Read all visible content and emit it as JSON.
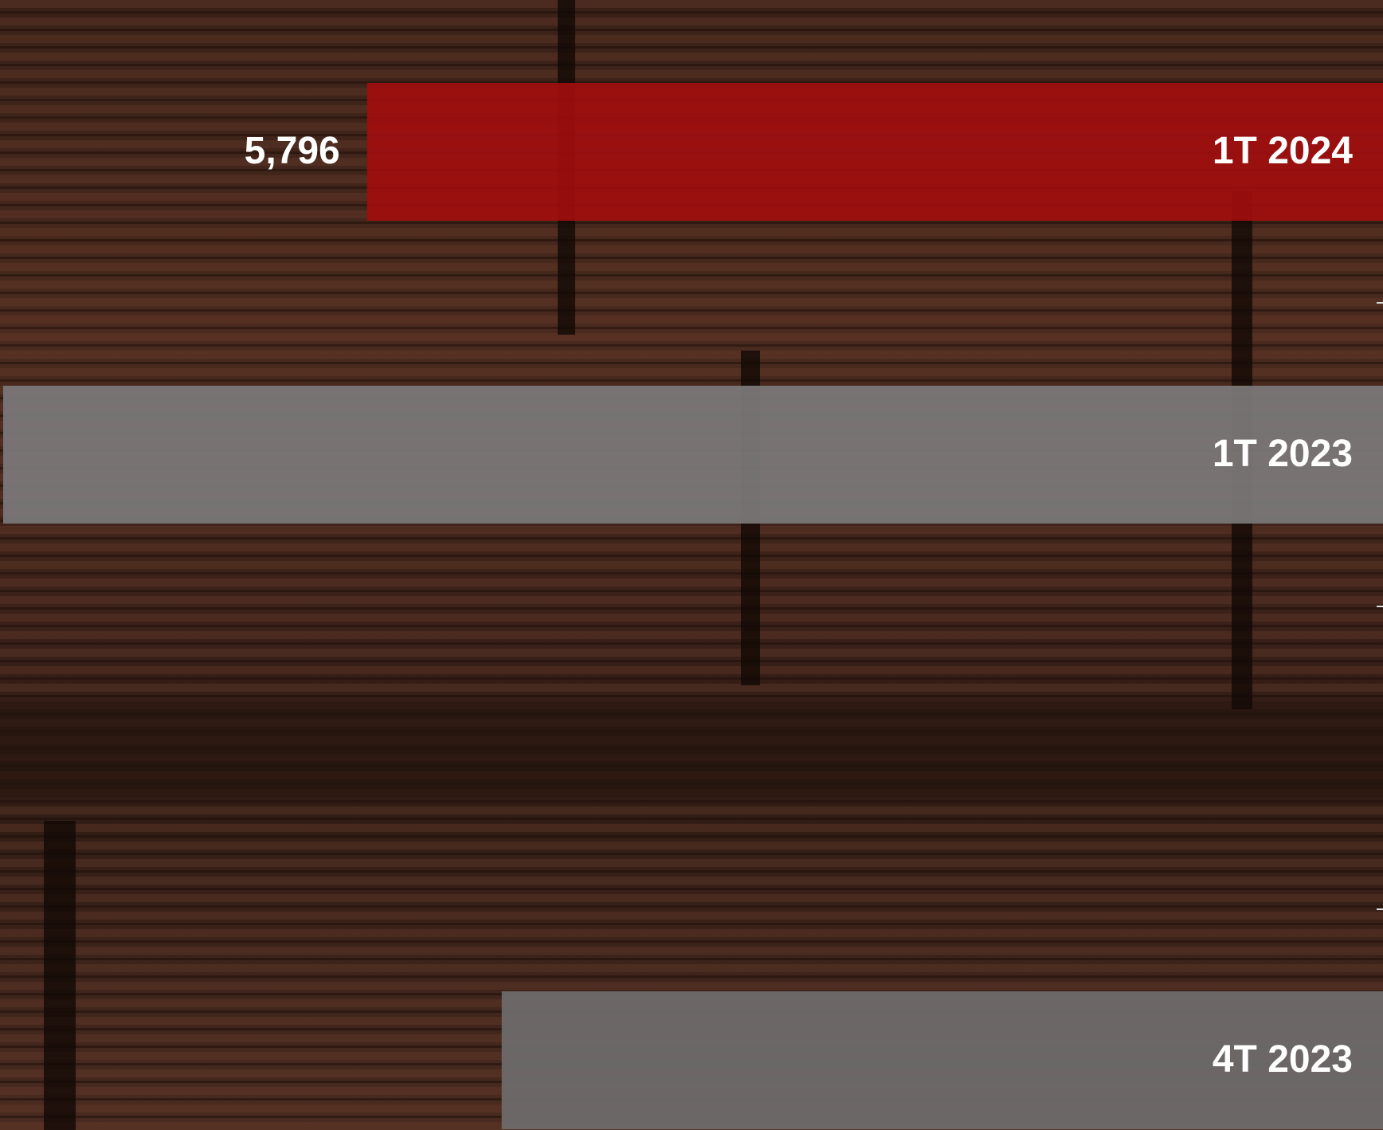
{
  "chart_data": {
    "type": "bar",
    "orientation": "horizontal",
    "categories": [
      "1T 2024",
      "1T 2023",
      "4T 2023"
    ],
    "values": [
      5796,
      7872,
      5028
    ],
    "value_labels": [
      "5,796",
      null,
      null
    ],
    "colors": [
      "#a00e0e",
      "#7c7a79",
      "#6f6d6c"
    ]
  }
}
